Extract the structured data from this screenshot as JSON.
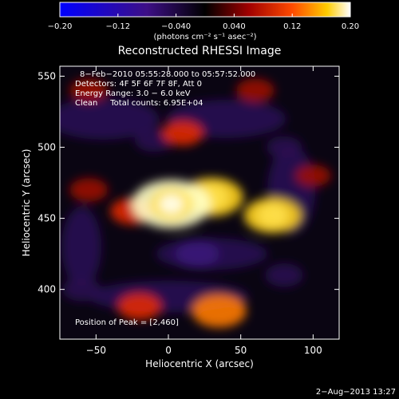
{
  "chart_data": {
    "type": "heatmap",
    "title": "Reconstructed RHESSI Image",
    "xlabel": "Heliocentric X (arcsec)",
    "ylabel": "Heliocentric Y (arcsec)",
    "xlim": [
      -75,
      118
    ],
    "ylim": [
      365,
      557
    ],
    "xticks": [
      -50,
      0,
      50,
      100
    ],
    "yticks": [
      400,
      450,
      500,
      550
    ],
    "colorbar": {
      "label": "(photons cm⁻² s⁻¹ asec⁻²)",
      "range": [
        -0.2,
        0.2
      ],
      "tick_values": [
        -0.2,
        -0.12,
        -0.04,
        0.04,
        0.12,
        0.2
      ],
      "tick_labels": [
        "−0.20",
        "−0.12",
        "−0.040",
        "0.040",
        "0.12",
        "0.20"
      ]
    },
    "annotations": [
      "8−Feb−2010 05:55:28.000 to 05:57:52.000",
      "Detectors: 4F 5F 6F 7F 8F, Att 0",
      "Energy Range: 3.0 − 6.0 keV",
      "Clean     Total counts: 6.95E+04"
    ],
    "peak_label": "Position of Peak = [2,460]",
    "peak": [
      2,
      460
    ],
    "features": [
      {
        "x": 2,
        "y": 460,
        "intensity": 0.2
      },
      {
        "x": 30,
        "y": 465,
        "intensity": 0.14
      },
      {
        "x": 72,
        "y": 452,
        "intensity": 0.12
      },
      {
        "x": -25,
        "y": 455,
        "intensity": 0.07
      },
      {
        "x": 35,
        "y": 385,
        "intensity": 0.11
      },
      {
        "x": -20,
        "y": 388,
        "intensity": 0.07
      },
      {
        "x": 10,
        "y": 510,
        "intensity": 0.06
      },
      {
        "x": -55,
        "y": 540,
        "intensity": 0.05
      },
      {
        "x": 60,
        "y": 540,
        "intensity": 0.05
      },
      {
        "x": -55,
        "y": 470,
        "intensity": 0.05
      },
      {
        "x": 100,
        "y": 480,
        "intensity": 0.04
      },
      {
        "x": 20,
        "y": 425,
        "intensity": -0.07
      },
      {
        "x": -10,
        "y": 505,
        "intensity": -0.05
      },
      {
        "x": 80,
        "y": 410,
        "intensity": -0.05
      },
      {
        "x": -60,
        "y": 400,
        "intensity": -0.05
      },
      {
        "x": 80,
        "y": 500,
        "intensity": -0.04
      }
    ]
  },
  "footer": {
    "date": "2−Aug−2013 13:27"
  }
}
